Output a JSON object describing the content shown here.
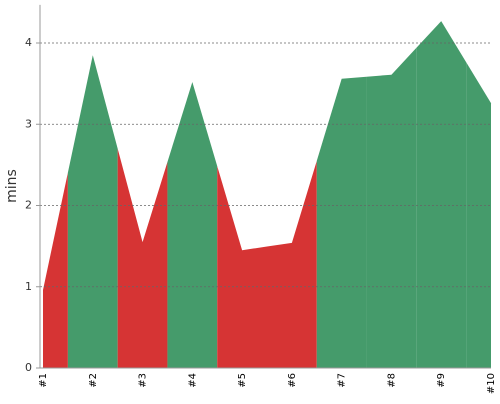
{
  "chart_data": {
    "type": "area",
    "y_label": "mins",
    "categories": [
      "#1",
      "#2",
      "#3",
      "#4",
      "#5",
      "#6",
      "#7",
      "#8",
      "#9",
      "#10"
    ],
    "values": [
      0.96,
      3.85,
      1.55,
      3.52,
      1.45,
      1.54,
      3.56,
      3.61,
      4.27,
      3.26
    ],
    "colors": [
      "#d63434",
      "#459b6b",
      "#d63434",
      "#459b6b",
      "#d63434",
      "#d63434",
      "#459b6b",
      "#459b6b",
      "#459b6b",
      "#459b6b"
    ],
    "ylim": [
      0,
      4.47
    ],
    "yticks": [
      0,
      1,
      2,
      3,
      4
    ],
    "grid": true
  }
}
